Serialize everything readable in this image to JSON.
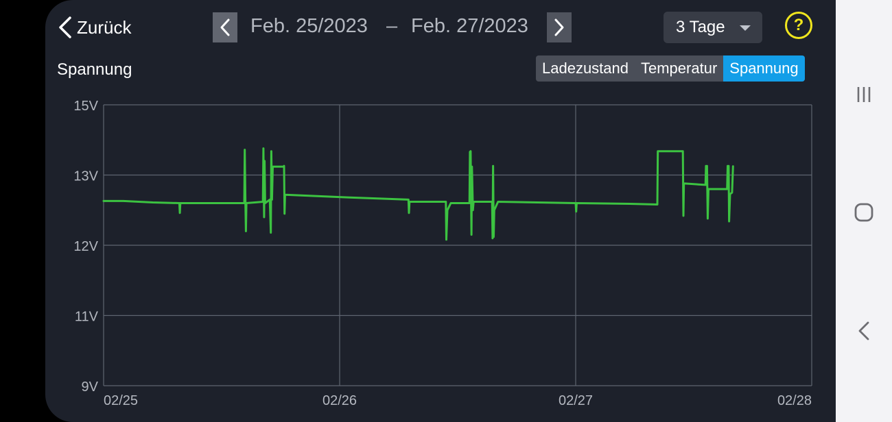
{
  "header": {
    "back_label": "Zurück",
    "date_start": "Feb. 25/2023",
    "date_separator": "–",
    "date_end": "Feb. 27/2023",
    "range_selected": "3 Tage",
    "help_symbol": "?"
  },
  "chart_title": "Spannung",
  "tabs": [
    {
      "label": "Ladezustand",
      "active": false
    },
    {
      "label": "Temperatur",
      "active": false
    },
    {
      "label": "Spannung",
      "active": true
    }
  ],
  "colors": {
    "background": "#1d212b",
    "line": "#3cc341",
    "grid": "#5f6570",
    "accent": "#139ee8",
    "help": "#f0e61e"
  },
  "system_nav": {
    "icons": [
      "recent-apps-icon",
      "home-icon",
      "back-icon"
    ]
  },
  "chart_data": {
    "type": "line",
    "title": "Spannung",
    "xlabel": "",
    "ylabel": "",
    "x_ticks": [
      "02/25",
      "02/26",
      "02/27",
      "02/28"
    ],
    "x_range": [
      0,
      72
    ],
    "y_ticks": [
      "15V",
      "13V",
      "12V",
      "11V",
      "9V"
    ],
    "y_tick_values": [
      15,
      13,
      12,
      11,
      9
    ],
    "y_tick_index": [
      0,
      1,
      2,
      3,
      4
    ],
    "grid": true,
    "legend": "none",
    "series": [
      {
        "values": [
          [
            0.0,
            12.63
          ],
          [
            2.0,
            12.63
          ],
          [
            5.0,
            12.61
          ],
          [
            7.7,
            12.6
          ],
          [
            7.75,
            12.46
          ],
          [
            7.8,
            12.6
          ],
          [
            14.3,
            12.6
          ],
          [
            14.35,
            13.72
          ],
          [
            14.42,
            12.6
          ],
          [
            14.47,
            12.2
          ],
          [
            14.52,
            12.6
          ],
          [
            16.2,
            12.62
          ],
          [
            16.25,
            13.76
          ],
          [
            16.32,
            12.4
          ],
          [
            16.37,
            13.4
          ],
          [
            16.42,
            12.6
          ],
          [
            16.9,
            12.65
          ],
          [
            17.0,
            12.18
          ],
          [
            17.05,
            13.68
          ],
          [
            17.12,
            12.65
          ],
          [
            17.2,
            13.24
          ],
          [
            18.3,
            13.24
          ],
          [
            18.35,
            13.26
          ],
          [
            18.4,
            12.45
          ],
          [
            18.45,
            12.72
          ],
          [
            25.0,
            12.68
          ],
          [
            31.0,
            12.65
          ],
          [
            31.05,
            12.46
          ],
          [
            31.1,
            12.62
          ],
          [
            34.8,
            12.62
          ],
          [
            34.85,
            12.08
          ],
          [
            34.95,
            12.5
          ],
          [
            35.3,
            12.6
          ],
          [
            37.2,
            12.6
          ],
          [
            37.25,
            13.66
          ],
          [
            37.32,
            13.68
          ],
          [
            37.4,
            12.15
          ],
          [
            37.45,
            13.24
          ],
          [
            37.55,
            12.5
          ],
          [
            37.62,
            12.62
          ],
          [
            39.5,
            12.62
          ],
          [
            39.55,
            12.1
          ],
          [
            39.6,
            13.26
          ],
          [
            39.66,
            12.12
          ],
          [
            39.72,
            12.5
          ],
          [
            40.1,
            12.62
          ],
          [
            48.0,
            12.6
          ],
          [
            48.05,
            12.48
          ],
          [
            48.1,
            12.6
          ],
          [
            53.5,
            12.59
          ],
          [
            56.3,
            12.58
          ],
          [
            56.35,
            13.68
          ],
          [
            58.9,
            13.68
          ],
          [
            58.95,
            12.42
          ],
          [
            59.0,
            12.88
          ],
          [
            61.2,
            12.86
          ],
          [
            61.25,
            13.26
          ],
          [
            61.3,
            12.88
          ],
          [
            61.35,
            13.26
          ],
          [
            61.42,
            12.38
          ],
          [
            61.5,
            12.8
          ],
          [
            63.4,
            12.8
          ],
          [
            63.45,
            13.26
          ],
          [
            63.5,
            12.85
          ],
          [
            63.55,
            13.26
          ],
          [
            63.6,
            12.34
          ],
          [
            63.7,
            12.73
          ],
          [
            63.9,
            12.75
          ],
          [
            64.0,
            13.25
          ]
        ]
      }
    ]
  }
}
